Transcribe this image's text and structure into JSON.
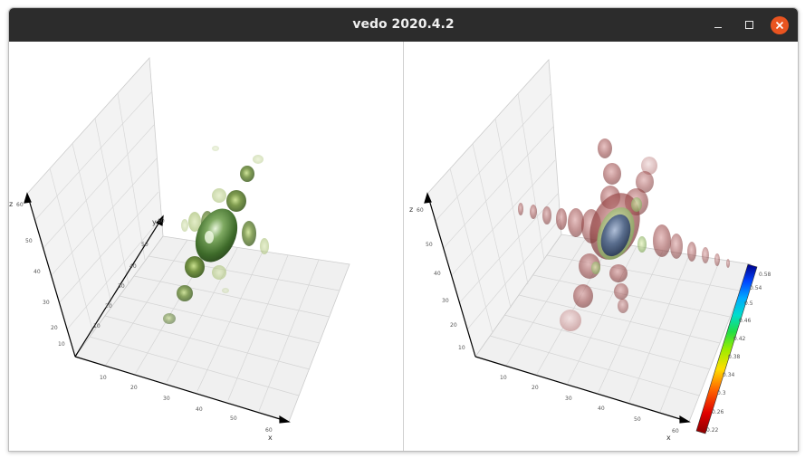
{
  "window": {
    "title": "vedo 2020.4.2",
    "controls": {
      "minimize": "minimize-icon",
      "maximize": "maximize-icon",
      "close": "close-icon"
    },
    "close_color": "#e95420",
    "titlebar_color": "#2c2c2c"
  },
  "left_view": {
    "axes": {
      "x_title": "x",
      "y_title": "y",
      "z_title": "z",
      "x_ticks": [
        "10",
        "20",
        "30",
        "40",
        "50",
        "60"
      ],
      "y_ticks": [
        "10",
        "20",
        "30",
        "40",
        "50",
        "60"
      ],
      "z_ticks": [
        "10",
        "20",
        "30",
        "40",
        "50",
        "60"
      ]
    },
    "isosurface_color": "#4a7a2c"
  },
  "right_view": {
    "axes": {
      "x_title": "x",
      "y_title": "y",
      "z_title": "z",
      "x_ticks": [
        "10",
        "20",
        "30",
        "40",
        "50",
        "60"
      ],
      "y_ticks": [
        "10",
        "20",
        "30",
        "40",
        "50",
        "60"
      ],
      "z_ticks": [
        "10",
        "20",
        "30",
        "40",
        "50",
        "60"
      ]
    },
    "colorbar": {
      "labels": [
        "0.22",
        "0.26",
        "0.3",
        "0.34",
        "0.38",
        "0.42",
        "0.46",
        "0.5",
        "0.54",
        "0.58"
      ],
      "min": 0.22,
      "max": 0.58
    },
    "lobe_color": "#8b3a3a",
    "core_color": "#4a5a78"
  }
}
